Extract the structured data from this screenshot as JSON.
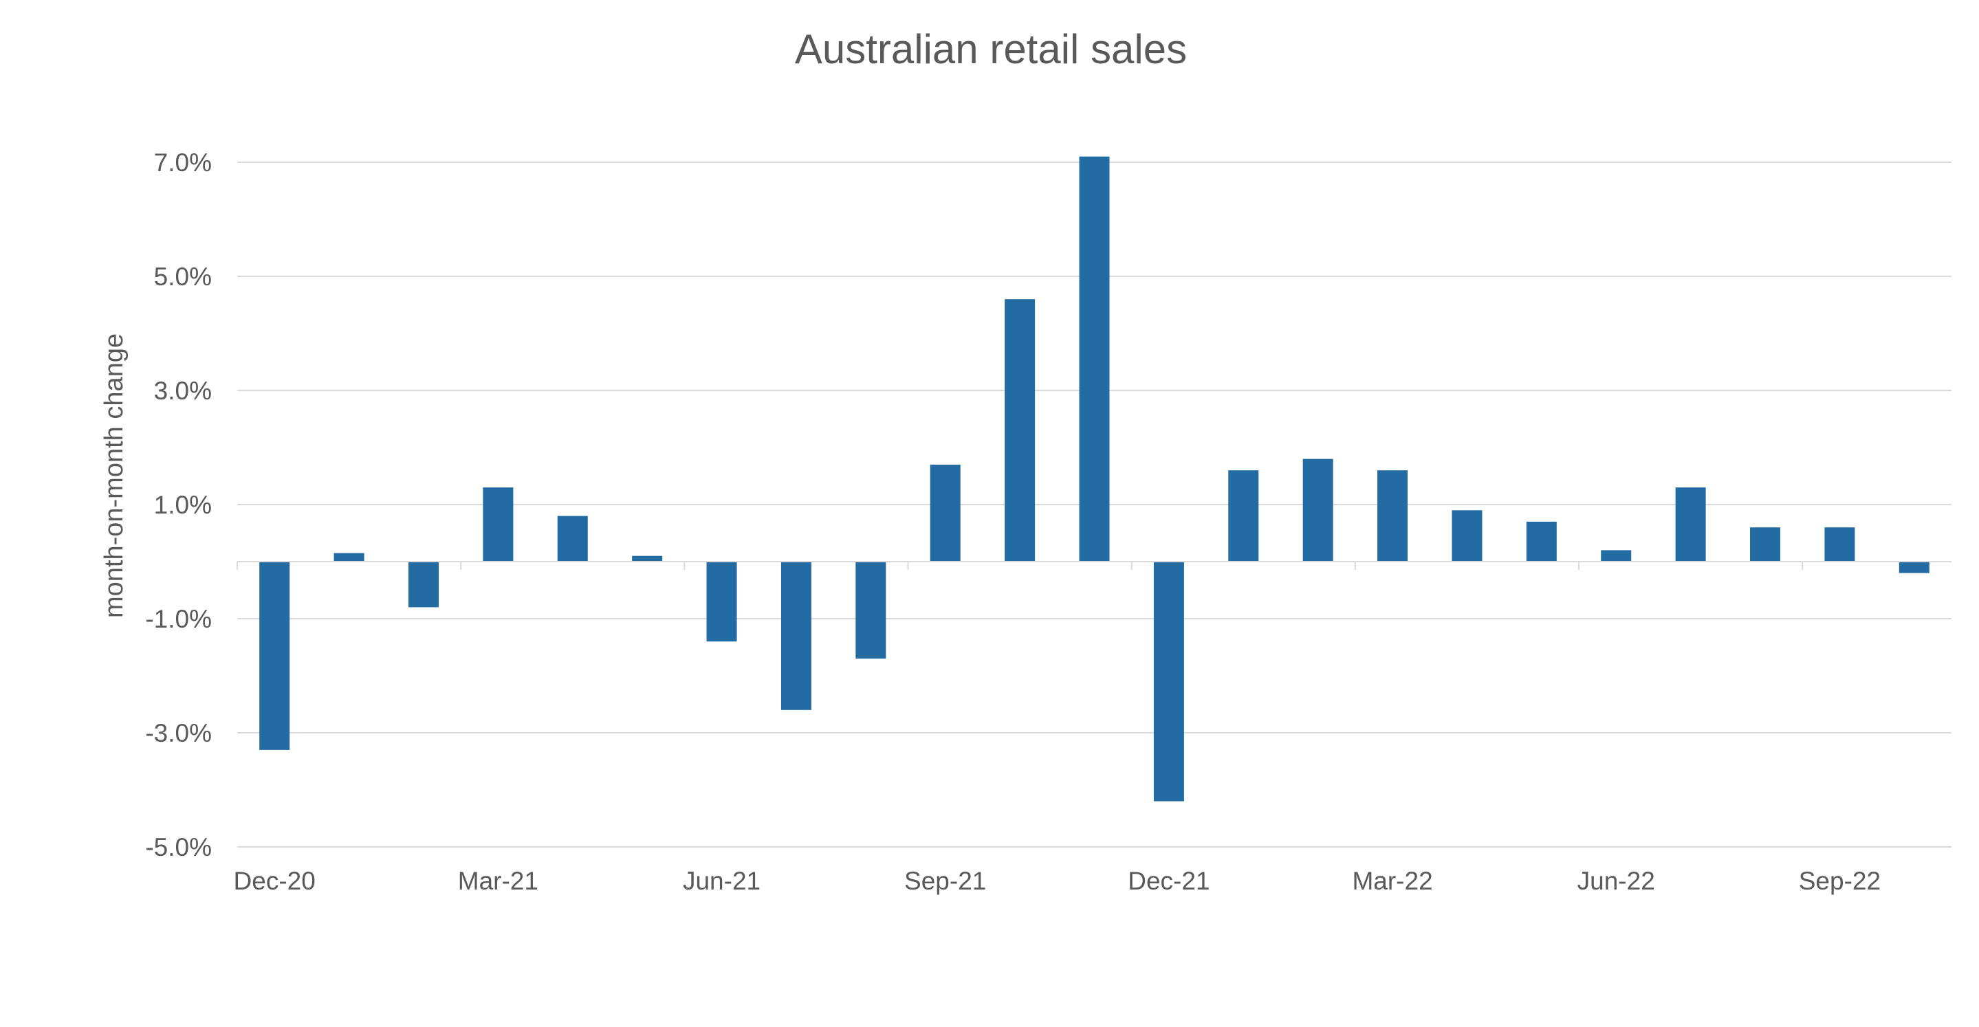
{
  "chart_data": {
    "type": "bar",
    "title": "Australian retail sales",
    "xlabel": "",
    "ylabel": "month-on-month change",
    "ylim": [
      -5.0,
      7.0
    ],
    "yticks": [
      7.0,
      5.0,
      3.0,
      1.0,
      -1.0,
      -3.0,
      -5.0
    ],
    "ytick_labels": [
      "7.0%",
      "5.0%",
      "3.0%",
      "1.0%",
      "-1.0%",
      "-3.0%",
      "-5.0%"
    ],
    "grid": true,
    "bar_color": "#236CA3",
    "categories": [
      "Dec-20",
      "Jan-21",
      "Feb-21",
      "Mar-21",
      "Apr-21",
      "May-21",
      "Jun-21",
      "Jul-21",
      "Aug-21",
      "Sep-21",
      "Oct-21",
      "Nov-21",
      "Dec-21",
      "Jan-22",
      "Feb-22",
      "Mar-22",
      "Apr-22",
      "May-22",
      "Jun-22",
      "Jul-22",
      "Aug-22",
      "Sep-22",
      "Oct-22"
    ],
    "xtick_labels": [
      "Dec-20",
      "Mar-21",
      "Jun-21",
      "Sep-21",
      "Dec-21",
      "Mar-22",
      "Jun-22",
      "Sep-22"
    ],
    "values": [
      -3.3,
      0.15,
      -0.8,
      1.3,
      0.8,
      0.1,
      -1.4,
      -2.6,
      -1.7,
      1.7,
      4.6,
      7.1,
      -4.2,
      1.6,
      1.8,
      1.6,
      0.9,
      0.7,
      0.2,
      1.3,
      0.6,
      0.6,
      -0.2
    ]
  }
}
